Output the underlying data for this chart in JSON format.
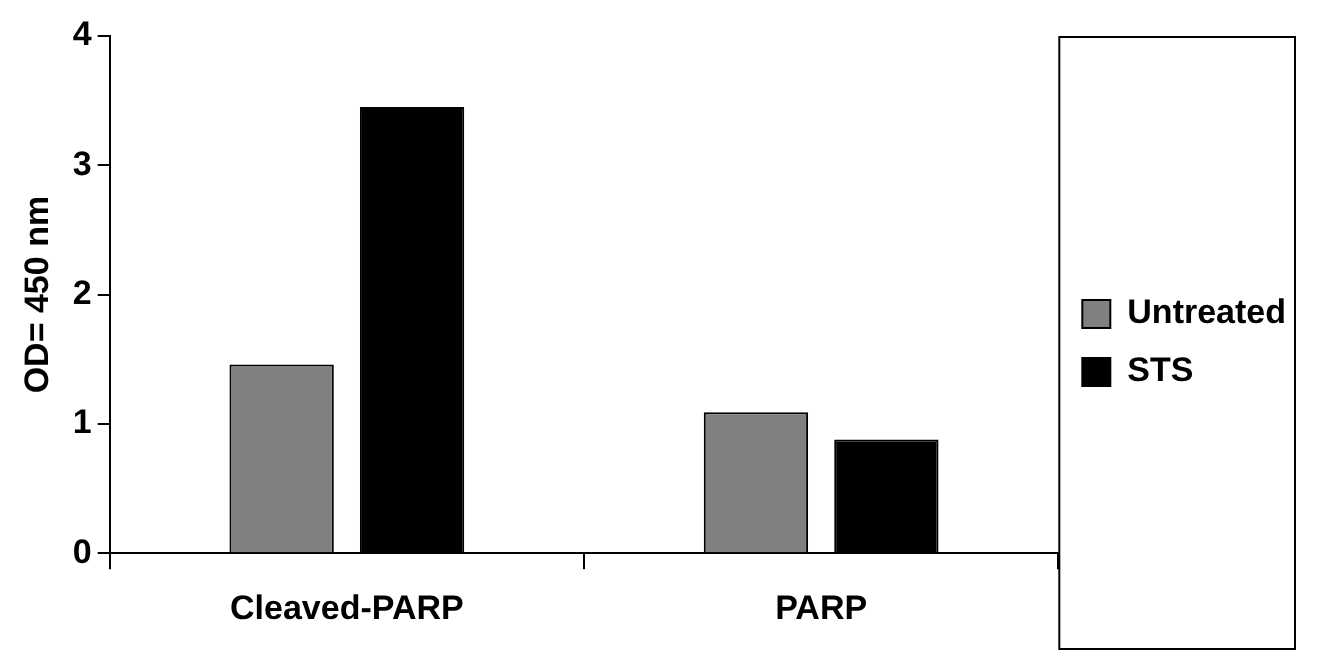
{
  "chart_data": {
    "type": "bar",
    "ylabel": "OD= 450 nm",
    "categories": [
      "Cleaved-PARP",
      "PARP"
    ],
    "series": [
      {
        "name": "Untreated",
        "color": "#808080",
        "values": [
          1.46,
          1.09
        ]
      },
      {
        "name": "STS",
        "color": "#000000",
        "values": [
          3.45,
          0.88
        ]
      }
    ],
    "ylim": [
      0,
      4
    ],
    "yticks": [
      0,
      1,
      2,
      3,
      4
    ],
    "grid": false,
    "legend": "right"
  }
}
